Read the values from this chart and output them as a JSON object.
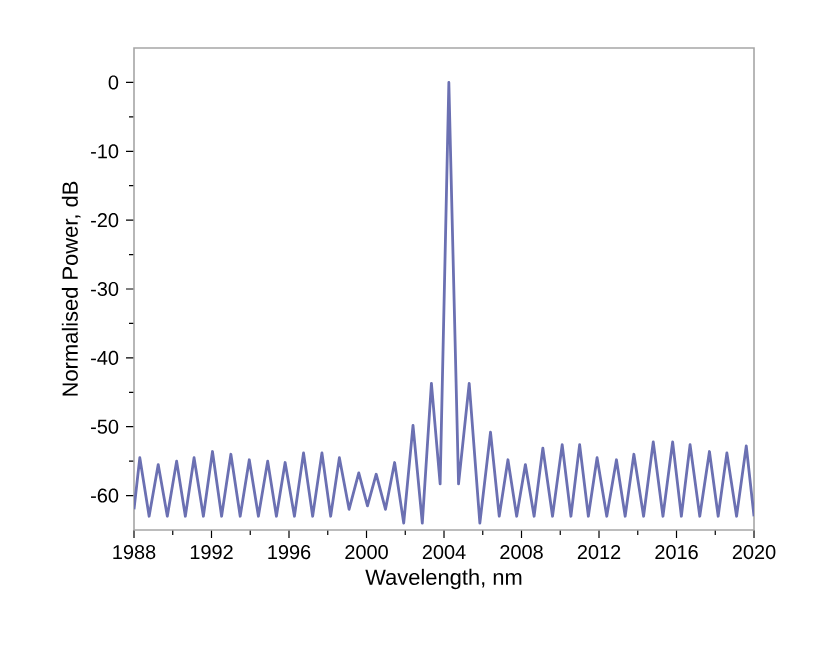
{
  "chart_data": {
    "type": "line",
    "xlabel": "Wavelength, nm",
    "ylabel": "Normalised Power, dB",
    "xlim": [
      1988,
      2020
    ],
    "ylim": [
      -65,
      5
    ],
    "xticks": [
      1988,
      1992,
      1996,
      2000,
      2004,
      2008,
      2012,
      2016,
      2020
    ],
    "yticks": [
      -60,
      -50,
      -40,
      -30,
      -20,
      -10,
      0
    ],
    "marker": "none",
    "line_style": "solid",
    "series": [
      {
        "color": "#6b70b2",
        "x": [
          1988.0,
          1988.3,
          1988.78,
          1989.25,
          1989.72,
          1990.2,
          1990.65,
          1991.1,
          1991.58,
          1992.05,
          1992.52,
          1993.0,
          1993.48,
          1993.95,
          1994.42,
          1994.9,
          1995.35,
          1995.8,
          1996.28,
          1996.75,
          1997.22,
          1997.7,
          1998.15,
          1998.6,
          1999.1,
          1999.6,
          2000.05,
          2000.5,
          2000.98,
          2001.45,
          2001.92,
          2002.4,
          2002.88,
          2003.35,
          2003.8,
          2004.25,
          2004.75,
          2005.3,
          2005.85,
          2006.4,
          2006.85,
          2007.3,
          2007.75,
          2008.2,
          2008.65,
          2009.1,
          2009.6,
          2010.1,
          2010.55,
          2011.0,
          2011.45,
          2011.9,
          2012.4,
          2012.9,
          2013.35,
          2013.8,
          2014.3,
          2014.8,
          2015.3,
          2015.8,
          2016.25,
          2016.7,
          2017.2,
          2017.7,
          2018.15,
          2018.6,
          2019.1,
          2019.6,
          2020.0
        ],
        "values": [
          -62,
          -54.5,
          -63,
          -55.5,
          -63,
          -55,
          -63,
          -54.5,
          -63,
          -53.6,
          -63,
          -54,
          -63,
          -54.8,
          -63,
          -55,
          -63,
          -55.2,
          -63,
          -53.8,
          -63,
          -53.8,
          -63,
          -54.5,
          -62,
          -56.7,
          -61.5,
          -56.9,
          -62,
          -55.2,
          -64,
          -49.8,
          -64,
          -43.7,
          -58.3,
          0,
          -58.3,
          -43.7,
          -64,
          -50.8,
          -63,
          -54.8,
          -63,
          -55.5,
          -63,
          -53.1,
          -63,
          -52.6,
          -63,
          -52.6,
          -63,
          -54.5,
          -63,
          -54.8,
          -63,
          -54,
          -63,
          -52.2,
          -63,
          -52.2,
          -63,
          -52.6,
          -63,
          -53.6,
          -63,
          -53.8,
          -63,
          -52.8,
          -63
        ]
      }
    ]
  }
}
